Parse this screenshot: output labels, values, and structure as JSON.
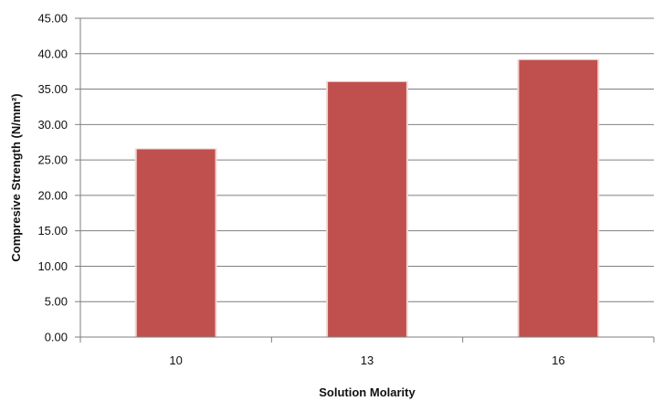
{
  "chart_data": {
    "type": "bar",
    "categories": [
      "10",
      "13",
      "16"
    ],
    "values": [
      26.5,
      36.0,
      39.1
    ],
    "title": "",
    "xlabel": "Solution Molarity",
    "ylabel": "Compresive Strength (N/mm²)",
    "ylim": [
      0,
      45
    ],
    "ytick_step": 5,
    "ytick_decimals": 2,
    "grid": true,
    "legend": "none",
    "colors": {
      "bar": "#c0504d",
      "bar_highlight": "#f2d6d6",
      "grid": "#7f7f7f",
      "axis": "#7f7f7f",
      "text": "#111111"
    }
  }
}
